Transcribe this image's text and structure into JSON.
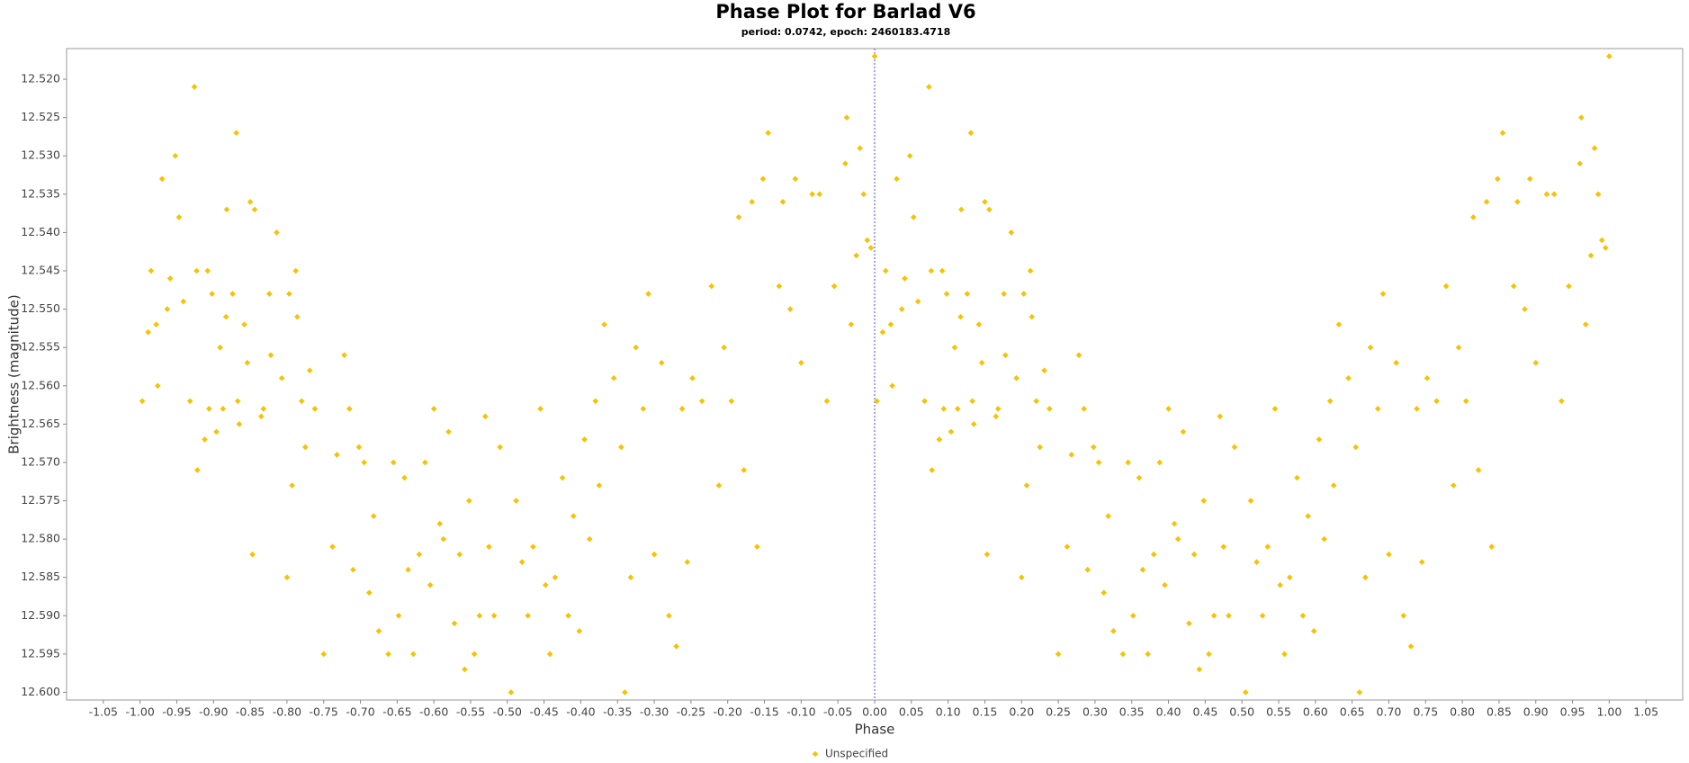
{
  "chart_data": {
    "type": "scatter",
    "title": "Phase Plot for Barlad V6",
    "subtitle": "period: 0.0742, epoch: 2460183.4718",
    "x_label": "Phase",
    "y_label": "Brightness (magnitude)",
    "xlim": [
      -1.1,
      1.1
    ],
    "ylim": [
      12.601,
      12.516
    ],
    "xticks": [
      {
        "value": -1.05,
        "label": "-1.05"
      },
      {
        "value": -1,
        "label": "-1.00"
      },
      {
        "value": -0.95,
        "label": "-0.95"
      },
      {
        "value": -0.9,
        "label": "-0.90"
      },
      {
        "value": -0.85,
        "label": "-0.85"
      },
      {
        "value": -0.8,
        "label": "-0.80"
      },
      {
        "value": -0.75,
        "label": "-0.75"
      },
      {
        "value": -0.7,
        "label": "-0.70"
      },
      {
        "value": -0.65,
        "label": "-0.65"
      },
      {
        "value": -0.6,
        "label": "-0.60"
      },
      {
        "value": -0.55,
        "label": "-0.55"
      },
      {
        "value": -0.5,
        "label": "-0.50"
      },
      {
        "value": -0.45,
        "label": "-0.45"
      },
      {
        "value": -0.4,
        "label": "-0.40"
      },
      {
        "value": -0.35,
        "label": "-0.35"
      },
      {
        "value": -0.3,
        "label": "-0.30"
      },
      {
        "value": -0.25,
        "label": "-0.25"
      },
      {
        "value": -0.2,
        "label": "-0.20"
      },
      {
        "value": -0.15,
        "label": "-0.15"
      },
      {
        "value": -0.1,
        "label": "-0.10"
      },
      {
        "value": -0.05,
        "label": "-0.05"
      },
      {
        "value": 0,
        "label": "0.00"
      },
      {
        "value": 0.05,
        "label": "0.05"
      },
      {
        "value": 0.1,
        "label": "0.10"
      },
      {
        "value": 0.15,
        "label": "0.15"
      },
      {
        "value": 0.2,
        "label": "0.20"
      },
      {
        "value": 0.25,
        "label": "0.25"
      },
      {
        "value": 0.3,
        "label": "0.30"
      },
      {
        "value": 0.35,
        "label": "0.35"
      },
      {
        "value": 0.4,
        "label": "0.40"
      },
      {
        "value": 0.45,
        "label": "0.45"
      },
      {
        "value": 0.5,
        "label": "0.50"
      },
      {
        "value": 0.55,
        "label": "0.55"
      },
      {
        "value": 0.6,
        "label": "0.60"
      },
      {
        "value": 0.65,
        "label": "0.65"
      },
      {
        "value": 0.7,
        "label": "0.70"
      },
      {
        "value": 0.75,
        "label": "0.75"
      },
      {
        "value": 0.8,
        "label": "0.80"
      },
      {
        "value": 0.85,
        "label": "0.85"
      },
      {
        "value": 0.9,
        "label": "0.90"
      },
      {
        "value": 0.95,
        "label": "0.95"
      },
      {
        "value": 1,
        "label": "1.00"
      },
      {
        "value": 1.05,
        "label": "1.05"
      }
    ],
    "yticks": [
      {
        "value": 12.52,
        "label": "12.520"
      },
      12.525,
      {
        "value": 12.53,
        "label": "12.530"
      },
      12.535,
      {
        "value": 12.54,
        "label": "12.540"
      },
      12.545,
      {
        "value": 12.55,
        "label": "12.550"
      },
      12.555,
      {
        "value": 12.56,
        "label": "12.560"
      },
      12.565,
      {
        "value": 12.57,
        "label": "12.570"
      },
      12.575,
      {
        "value": 12.58,
        "label": "12.580"
      },
      12.585,
      {
        "value": 12.59,
        "label": "12.590"
      },
      12.595,
      {
        "value": 12.6,
        "label": "12.600"
      }
    ],
    "vertical_line": 0,
    "grid": false,
    "legend": "bottom",
    "x": [
      -0.997,
      -0.989,
      -0.985,
      -0.978,
      -0.976,
      -0.97,
      -0.963,
      -0.959,
      -0.952,
      -0.947,
      -0.941,
      -0.932,
      -0.926,
      -0.923,
      -0.922,
      -0.912,
      -0.908,
      -0.906,
      -0.902,
      -0.896,
      -0.891,
      -0.887,
      -0.883,
      -0.882,
      -0.874,
      -0.869,
      -0.867,
      -0.865,
      -0.858,
      -0.854,
      -0.85,
      -0.847,
      -0.844,
      -0.835,
      -0.832,
      -0.824,
      -0.822,
      -0.814,
      -0.807,
      -0.8,
      -0.797,
      -0.793,
      -0.788,
      -0.786,
      -0.78,
      -0.775,
      -0.769,
      -0.762,
      -0.75,
      -0.738,
      -0.732,
      -0.722,
      -0.715,
      -0.71,
      -0.702,
      -0.695,
      -0.688,
      -0.682,
      -0.675,
      -0.662,
      -0.655,
      -0.648,
      -0.64,
      -0.635,
      -0.628,
      -0.62,
      -0.612,
      -0.605,
      -0.6,
      -0.592,
      -0.587,
      -0.58,
      -0.572,
      -0.565,
      -0.558,
      -0.552,
      -0.545,
      -0.538,
      -0.53,
      -0.525,
      -0.518,
      -0.51,
      -0.495,
      -0.488,
      -0.48,
      -0.472,
      -0.465,
      -0.455,
      -0.448,
      -0.442,
      -0.435,
      -0.425,
      -0.417,
      -0.41,
      -0.402,
      -0.395,
      -0.388,
      -0.38,
      -0.375,
      -0.368,
      -0.355,
      -0.345,
      -0.34,
      -0.332,
      -0.325,
      -0.315,
      -0.308,
      -0.3,
      -0.29,
      -0.28,
      -0.27,
      -0.262,
      -0.255,
      -0.248,
      -0.235,
      -0.222,
      -0.212,
      -0.205,
      -0.195,
      -0.185,
      -0.178,
      -0.167,
      -0.16,
      -0.152,
      -0.145,
      -0.13,
      -0.125,
      -0.115,
      -0.108,
      -0.1,
      -0.085,
      -0.075,
      -0.065,
      -0.055,
      -0.04,
      -0.038,
      -0.032,
      -0.025,
      -0.02,
      -0.015,
      -0.01,
      -0.005,
      0.0,
      0.003,
      0.011,
      0.015,
      0.022,
      0.024,
      0.03,
      0.037,
      0.041,
      0.048,
      0.053,
      0.059,
      0.068,
      0.074,
      0.077,
      0.078,
      0.088,
      0.092,
      0.094,
      0.098,
      0.104,
      0.109,
      0.113,
      0.117,
      0.118,
      0.126,
      0.131,
      0.133,
      0.135,
      0.142,
      0.146,
      0.15,
      0.153,
      0.156,
      0.165,
      0.168,
      0.176,
      0.178,
      0.186,
      0.193,
      0.2,
      0.203,
      0.207,
      0.212,
      0.214,
      0.22,
      0.225,
      0.231,
      0.238,
      0.25,
      0.262,
      0.268,
      0.278,
      0.285,
      0.29,
      0.298,
      0.305,
      0.312,
      0.318,
      0.325,
      0.338,
      0.345,
      0.352,
      0.36,
      0.365,
      0.372,
      0.38,
      0.388,
      0.395,
      0.4,
      0.408,
      0.413,
      0.42,
      0.428,
      0.435,
      0.442,
      0.448,
      0.455,
      0.462,
      0.47,
      0.475,
      0.482,
      0.49,
      0.505,
      0.512,
      0.52,
      0.528,
      0.535,
      0.545,
      0.552,
      0.558,
      0.565,
      0.575,
      0.583,
      0.59,
      0.598,
      0.605,
      0.612,
      0.62,
      0.625,
      0.632,
      0.645,
      0.655,
      0.66,
      0.668,
      0.675,
      0.685,
      0.692,
      0.7,
      0.71,
      0.72,
      0.73,
      0.738,
      0.745,
      0.752,
      0.765,
      0.778,
      0.788,
      0.795,
      0.805,
      0.815,
      0.822,
      0.833,
      0.84,
      0.848,
      0.855,
      0.87,
      0.875,
      0.885,
      0.892,
      0.9,
      0.915,
      0.925,
      0.935,
      0.945,
      0.96,
      0.962,
      0.968,
      0.975,
      0.98,
      0.985,
      0.99,
      0.995,
      1.0
    ],
    "series": [
      {
        "name": "Unspecified",
        "color": "#f7c200",
        "values": [
          12.562,
          12.553,
          12.545,
          12.552,
          12.56,
          12.533,
          12.55,
          12.546,
          12.53,
          12.538,
          12.549,
          12.562,
          12.521,
          12.545,
          12.571,
          12.567,
          12.545,
          12.563,
          12.548,
          12.566,
          12.555,
          12.563,
          12.551,
          12.537,
          12.548,
          12.527,
          12.562,
          12.565,
          12.552,
          12.557,
          12.536,
          12.582,
          12.537,
          12.564,
          12.563,
          12.548,
          12.556,
          12.54,
          12.559,
          12.585,
          12.548,
          12.573,
          12.545,
          12.551,
          12.562,
          12.568,
          12.558,
          12.563,
          12.595,
          12.581,
          12.569,
          12.556,
          12.563,
          12.584,
          12.568,
          12.57,
          12.587,
          12.577,
          12.592,
          12.595,
          12.57,
          12.59,
          12.572,
          12.584,
          12.595,
          12.582,
          12.57,
          12.586,
          12.563,
          12.578,
          12.58,
          12.566,
          12.591,
          12.582,
          12.597,
          12.575,
          12.595,
          12.59,
          12.564,
          12.581,
          12.59,
          12.568,
          12.6,
          12.575,
          12.583,
          12.59,
          12.581,
          12.563,
          12.586,
          12.595,
          12.585,
          12.572,
          12.59,
          12.577,
          12.592,
          12.567,
          12.58,
          12.562,
          12.573,
          12.552,
          12.559,
          12.568,
          12.6,
          12.585,
          12.555,
          12.563,
          12.548,
          12.582,
          12.557,
          12.59,
          12.594,
          12.563,
          12.583,
          12.559,
          12.562,
          12.547,
          12.573,
          12.555,
          12.562,
          12.538,
          12.571,
          12.536,
          12.581,
          12.533,
          12.527,
          12.547,
          12.536,
          12.55,
          12.533,
          12.557,
          12.535,
          12.535,
          12.562,
          12.547,
          12.531,
          12.525,
          12.552,
          12.543,
          12.529,
          12.535,
          12.541,
          12.542,
          12.517,
          12.562,
          12.553,
          12.545,
          12.552,
          12.56,
          12.533,
          12.55,
          12.546,
          12.53,
          12.538,
          12.549,
          12.562,
          12.521,
          12.545,
          12.571,
          12.567,
          12.545,
          12.563,
          12.548,
          12.566,
          12.555,
          12.563,
          12.551,
          12.537,
          12.548,
          12.527,
          12.562,
          12.565,
          12.552,
          12.557,
          12.536,
          12.582,
          12.537,
          12.564,
          12.563,
          12.548,
          12.556,
          12.54,
          12.559,
          12.585,
          12.548,
          12.573,
          12.545,
          12.551,
          12.562,
          12.568,
          12.558,
          12.563,
          12.595,
          12.581,
          12.569,
          12.556,
          12.563,
          12.584,
          12.568,
          12.57,
          12.587,
          12.577,
          12.592,
          12.595,
          12.57,
          12.59,
          12.572,
          12.584,
          12.595,
          12.582,
          12.57,
          12.586,
          12.563,
          12.578,
          12.58,
          12.566,
          12.591,
          12.582,
          12.597,
          12.575,
          12.595,
          12.59,
          12.564,
          12.581,
          12.59,
          12.568,
          12.6,
          12.575,
          12.583,
          12.59,
          12.581,
          12.563,
          12.586,
          12.595,
          12.585,
          12.572,
          12.59,
          12.577,
          12.592,
          12.567,
          12.58,
          12.562,
          12.573,
          12.552,
          12.559,
          12.568,
          12.6,
          12.585,
          12.555,
          12.563,
          12.548,
          12.582,
          12.557,
          12.59,
          12.594,
          12.563,
          12.583,
          12.559,
          12.562,
          12.547,
          12.573,
          12.555,
          12.562,
          12.538,
          12.571,
          12.536,
          12.581,
          12.533,
          12.527,
          12.547,
          12.536,
          12.55,
          12.533,
          12.557,
          12.535,
          12.535,
          12.562,
          12.547,
          12.531,
          12.525,
          12.552,
          12.543,
          12.529,
          12.535,
          12.541,
          12.542,
          12.517
        ]
      }
    ]
  }
}
